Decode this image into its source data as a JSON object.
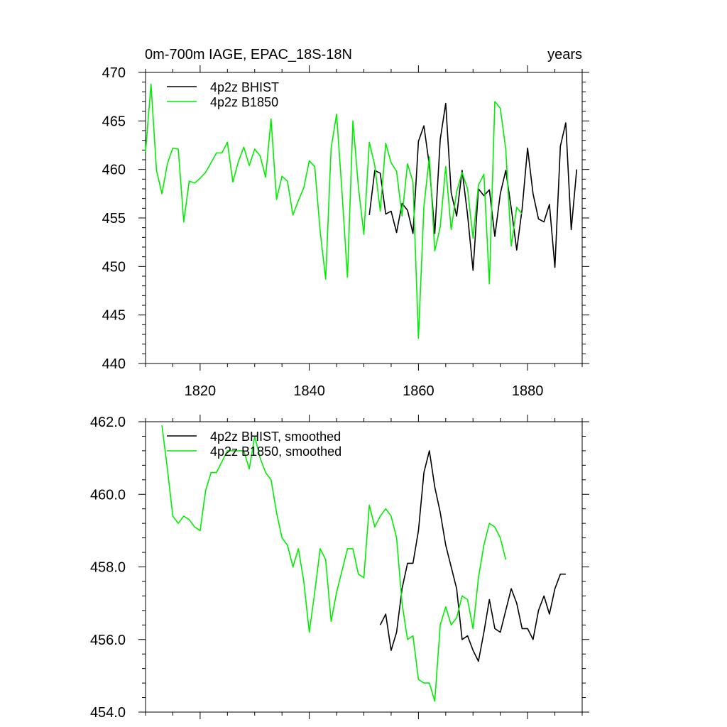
{
  "chart_data": [
    {
      "type": "line",
      "title": "0m-700m IAGE, EPAC_18S-18N",
      "title_right": "years",
      "xlabel": "",
      "ylabel": "",
      "xlim": [
        1810,
        1890
      ],
      "ylim": [
        440,
        470
      ],
      "xticks": [
        1820,
        1840,
        1860,
        1880
      ],
      "xtick_labels": [
        "1820",
        "1840",
        "1860",
        "1880"
      ],
      "yticks": [
        440,
        445,
        450,
        455,
        460,
        465,
        470
      ],
      "ytick_labels": [
        "440",
        "445",
        "450",
        "455",
        "460",
        "465",
        "470"
      ],
      "grid": false,
      "legend_position": "top-left",
      "series": [
        {
          "name": "4p2z BHIST",
          "color": "#000000",
          "x": [
            1851,
            1852,
            1853,
            1854,
            1855,
            1856,
            1857,
            1858,
            1859,
            1860,
            1861,
            1862,
            1863,
            1864,
            1865,
            1866,
            1867,
            1868,
            1869,
            1870,
            1871,
            1872,
            1873,
            1874,
            1875,
            1876,
            1877,
            1878,
            1879,
            1880,
            1881,
            1882,
            1883,
            1884,
            1885,
            1886,
            1887,
            1888,
            1889
          ],
          "y": [
            455.3,
            459.9,
            459.6,
            455.4,
            455.7,
            453.5,
            456.5,
            455.8,
            453.4,
            462.9,
            464.5,
            460.4,
            453.4,
            463.1,
            466.8,
            457.6,
            455.2,
            459.9,
            455.3,
            449.6,
            458.0,
            457.3,
            457.9,
            453.1,
            457.5,
            459.9,
            456.0,
            451.7,
            455.9,
            462.2,
            457.5,
            454.9,
            454.6,
            456.4,
            449.9,
            462.4,
            464.8,
            453.8,
            460.0
          ]
        },
        {
          "name": "4p2z B1850",
          "color": "#00ee00",
          "x": [
            1810,
            1811,
            1812,
            1813,
            1814,
            1815,
            1816,
            1817,
            1818,
            1819,
            1820,
            1821,
            1822,
            1823,
            1824,
            1825,
            1826,
            1827,
            1828,
            1829,
            1830,
            1831,
            1832,
            1833,
            1834,
            1835,
            1836,
            1837,
            1838,
            1839,
            1840,
            1841,
            1842,
            1843,
            1844,
            1845,
            1846,
            1847,
            1848,
            1849,
            1850,
            1851,
            1852,
            1853,
            1854,
            1855,
            1856,
            1857,
            1858,
            1859,
            1860,
            1861,
            1862,
            1863,
            1864,
            1865,
            1866,
            1867,
            1868,
            1869,
            1870,
            1871,
            1872,
            1873,
            1874,
            1875,
            1876,
            1877,
            1878,
            1879
          ],
          "y": [
            461.8,
            468.8,
            459.9,
            457.5,
            460.6,
            462.2,
            462.1,
            454.6,
            458.8,
            458.6,
            459.1,
            459.7,
            460.7,
            461.7,
            461.7,
            462.8,
            458.7,
            460.8,
            462.3,
            460.4,
            462.1,
            461.4,
            459.2,
            465.2,
            456.9,
            459.3,
            458.8,
            455.3,
            456.8,
            458.1,
            460.9,
            460.3,
            453.6,
            448.7,
            462.2,
            465.7,
            457.6,
            448.9,
            465.0,
            458.2,
            453.3,
            462.8,
            460.4,
            455.7,
            462.7,
            460.7,
            459.8,
            455.2,
            460.6,
            458.7,
            442.6,
            456.2,
            461.3,
            451.6,
            454.1,
            460.3,
            453.8,
            457.7,
            459.7,
            458.0,
            452.9,
            458.4,
            459.5,
            448.2,
            467.0,
            466.3,
            462.1,
            452.1,
            456.1,
            455.4
          ]
        }
      ]
    },
    {
      "type": "line",
      "title": "",
      "xlabel": "",
      "ylabel": "",
      "xlim": [
        1810,
        1890
      ],
      "ylim": [
        454,
        462
      ],
      "xticks": [
        1820,
        1840,
        1860,
        1880
      ],
      "xtick_labels": [],
      "yticks": [
        454,
        456,
        458,
        460,
        462
      ],
      "ytick_labels": [
        "454.0",
        "456.0",
        "458.0",
        "460.0",
        "462.0"
      ],
      "grid": false,
      "legend_position": "top-left",
      "series": [
        {
          "name": "4p2z BHIST, smoothed",
          "color": "#000000",
          "x": [
            1853,
            1854,
            1855,
            1856,
            1857,
            1858,
            1859,
            1860,
            1861,
            1862,
            1863,
            1864,
            1865,
            1866,
            1867,
            1868,
            1869,
            1870,
            1871,
            1872,
            1873,
            1874,
            1875,
            1876,
            1877,
            1878,
            1879,
            1880,
            1881,
            1882,
            1883,
            1884,
            1885,
            1886,
            1887
          ],
          "y": [
            456.4,
            456.7,
            455.7,
            456.2,
            457.4,
            458.1,
            458.1,
            459.0,
            460.6,
            461.2,
            460.2,
            459.5,
            458.6,
            458.0,
            457.4,
            456.0,
            456.1,
            455.7,
            455.4,
            456.2,
            457.1,
            456.3,
            456.2,
            456.8,
            457.4,
            457.0,
            456.3,
            456.3,
            456.0,
            456.8,
            457.2,
            456.7,
            457.4,
            457.8,
            457.8
          ]
        },
        {
          "name": "4p2z B1850, smoothed",
          "color": "#00ee00",
          "x": [
            1813,
            1814,
            1815,
            1816,
            1817,
            1818,
            1819,
            1820,
            1821,
            1822,
            1823,
            1824,
            1825,
            1826,
            1827,
            1828,
            1829,
            1830,
            1831,
            1832,
            1833,
            1834,
            1835,
            1836,
            1837,
            1838,
            1839,
            1840,
            1841,
            1842,
            1843,
            1844,
            1845,
            1846,
            1847,
            1848,
            1849,
            1850,
            1851,
            1852,
            1853,
            1854,
            1855,
            1856,
            1857,
            1858,
            1859,
            1860,
            1861,
            1862,
            1863,
            1864,
            1865,
            1866,
            1867,
            1868,
            1869,
            1870,
            1871,
            1872,
            1873,
            1874,
            1875,
            1876
          ],
          "y": [
            461.9,
            460.7,
            459.4,
            459.2,
            459.4,
            459.3,
            459.1,
            459.0,
            460.1,
            460.6,
            460.6,
            460.9,
            461.2,
            461.2,
            461.2,
            461.2,
            460.7,
            461.6,
            461.0,
            460.6,
            460.4,
            459.5,
            458.8,
            458.6,
            458.0,
            458.5,
            457.6,
            456.2,
            457.3,
            458.5,
            458.2,
            456.5,
            457.3,
            457.9,
            458.5,
            458.5,
            457.8,
            457.7,
            459.7,
            459.1,
            459.4,
            459.6,
            459.4,
            458.8,
            457.0,
            456.0,
            456.1,
            454.9,
            454.8,
            454.8,
            454.3,
            456.4,
            456.9,
            456.4,
            456.6,
            457.2,
            457.1,
            456.3,
            457.7,
            458.6,
            459.2,
            459.1,
            458.8,
            458.2
          ]
        }
      ]
    }
  ]
}
